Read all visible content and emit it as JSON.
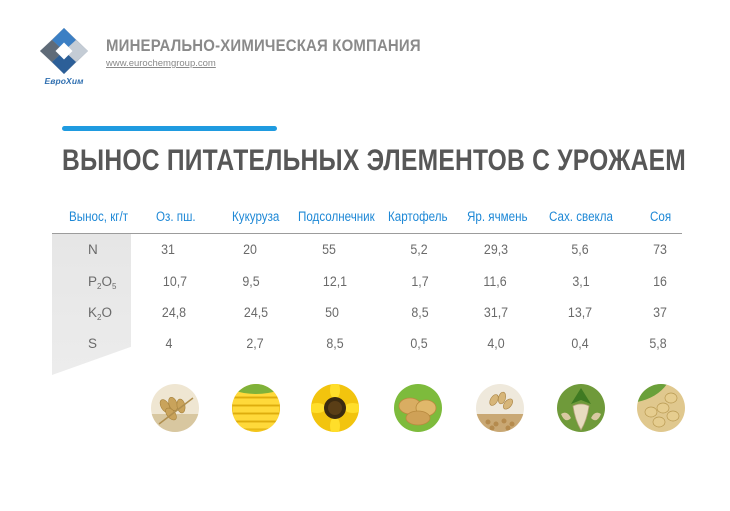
{
  "header": {
    "logo_text": "ЕвроХим",
    "company": "МИНЕРАЛЬНО-ХИМИЧЕСКАЯ КОМПАНИЯ",
    "website": "www.eurochemgroup.com"
  },
  "title": "ВЫНОС ПИТАТЕЛЬНЫХ ЭЛЕМЕНТОВ С УРОЖАЕМ",
  "table": {
    "corner_header": "Вынос, кг/т",
    "columns": [
      "Оз. пш.",
      "Кукуруза",
      "Подсолнечник",
      "Картофель",
      "Яр. ячмень",
      "Сах. свекла",
      "Соя"
    ],
    "rows": [
      {
        "label": "N",
        "values": [
          "31",
          "20",
          "55",
          "5,2",
          "29,3",
          "5,6",
          "73"
        ]
      },
      {
        "label": "P",
        "label_sub1": "2",
        "label_mid": "O",
        "label_sub2": "5",
        "values": [
          "10,7",
          "9,5",
          "12,1",
          "1,7",
          "11,6",
          "3,1",
          "16"
        ]
      },
      {
        "label": "K",
        "label_sub1": "2",
        "label_mid": "O",
        "values": [
          "24,8",
          "24,5",
          "50",
          "8,5",
          "31,7",
          "13,7",
          "37"
        ]
      },
      {
        "label": "S",
        "values": [
          "4",
          "2,7",
          "8,5",
          "0,5",
          "4,0",
          "0,4",
          "5,8"
        ]
      }
    ]
  },
  "crop_images": [
    "wheat-image",
    "corn-image",
    "sunflower-image",
    "potato-image",
    "barley-image",
    "sugar-beet-image",
    "soybean-image"
  ],
  "colors": {
    "accent": "#1f9be0",
    "header_text": "#1e88d6",
    "body_text": "#6a6a6a",
    "title": "#575757"
  }
}
